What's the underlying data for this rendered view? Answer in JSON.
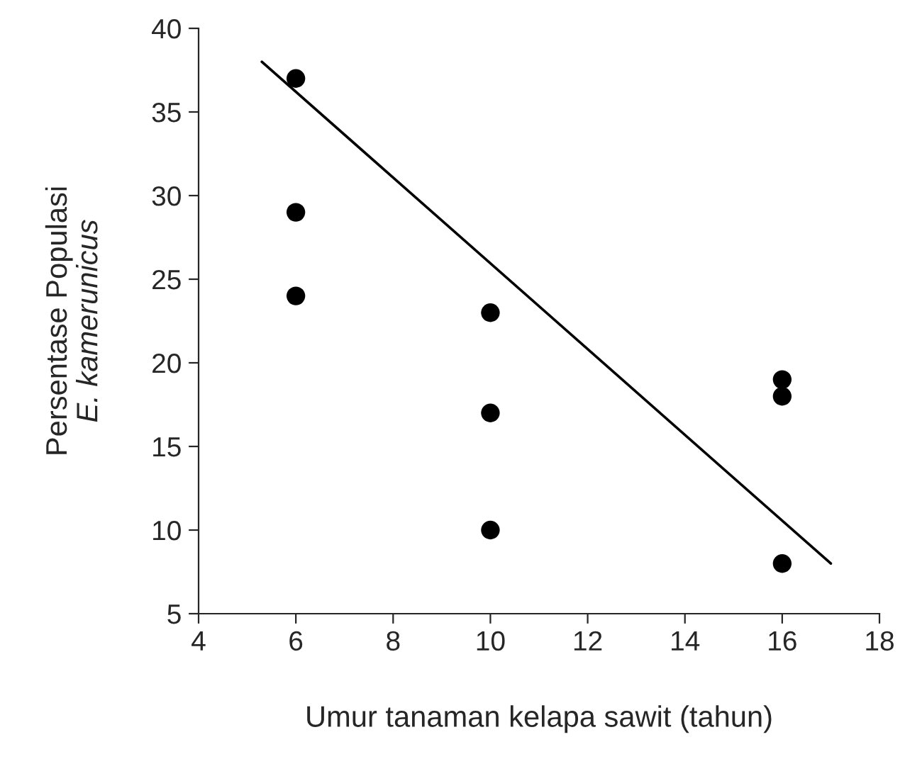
{
  "chart_data": {
    "type": "scatter",
    "xlabel": "Umur tanaman kelapa sawit (tahun)",
    "ylabel": "Persentase Populasi\nE. kamerunicus",
    "series": [
      {
        "color": "#000000",
        "marker": "circle",
        "x": [
          6,
          6,
          6,
          10,
          10,
          10,
          16,
          16,
          16
        ],
        "values": [
          37,
          29,
          24,
          23,
          17,
          10,
          19,
          18,
          8
        ]
      },
      {
        "type": "line",
        "color": "#000000",
        "marker": "none",
        "x": [
          5.3,
          17
        ],
        "values": [
          38,
          8
        ]
      }
    ],
    "xlim": [
      4,
      18
    ],
    "xticks": [
      4,
      6,
      8,
      10,
      12,
      14,
      16,
      18
    ],
    "ylim": [
      5,
      40
    ],
    "yticks": [
      5,
      10,
      15,
      20,
      25,
      30,
      35,
      40
    ],
    "grid": false,
    "legend": false
  }
}
